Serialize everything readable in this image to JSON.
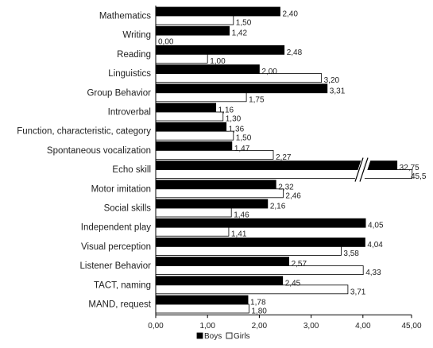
{
  "chart_data": {
    "type": "bar",
    "orientation": "horizontal",
    "categories": [
      "Mathematics",
      "Writing",
      "Reading",
      "Linguistics",
      "Group Behavior",
      "Introverbal",
      "Function, characteristic, category",
      "Spontaneous vocalization",
      "Echo skill",
      "Motor imitation",
      "Social skills",
      "Independent play",
      "Visual perception",
      "Listener Behavior",
      "TACT, naming",
      "MAND, request"
    ],
    "series": [
      {
        "name": "Boys",
        "color": "#000000",
        "values": [
          2.4,
          1.42,
          2.48,
          2.0,
          3.31,
          1.16,
          1.36,
          1.47,
          32.75,
          2.32,
          2.16,
          4.05,
          4.04,
          2.57,
          2.45,
          1.78
        ],
        "labels": [
          "2,40",
          "1,42",
          "2,48",
          "2,00",
          "3,31",
          "1,16",
          "1,36",
          "1,47",
          "32,75",
          "2,32",
          "2,16",
          "4,05",
          "4,04",
          "2,57",
          "2,45",
          "1,78"
        ]
      },
      {
        "name": "Girls",
        "color": "#ffffff",
        "values": [
          1.5,
          0.0,
          1.0,
          3.2,
          1.75,
          1.3,
          1.5,
          2.27,
          45.5,
          2.46,
          1.46,
          1.41,
          3.58,
          4.33,
          3.71,
          1.8
        ],
        "labels": [
          "1,50",
          "0,00",
          "1,00",
          "3,20",
          "1,75",
          "1,30",
          "1,50",
          "2,27",
          "45,5",
          "2,46",
          "1,46",
          "1,41",
          "3,58",
          "4,33",
          "3,71",
          "1,80"
        ]
      }
    ],
    "x_axis": {
      "ticks": [
        0,
        1,
        2,
        3,
        4,
        45
      ],
      "tick_labels": [
        "0,00",
        "1,00",
        "2,00",
        "3,00",
        "4,00",
        "45,00"
      ],
      "scale_break": "between 4,00 and 45,00"
    },
    "legend": {
      "position": "bottom",
      "entries": [
        "Boys",
        "Girls"
      ]
    },
    "grid": false,
    "title": "",
    "xlabel": "",
    "ylabel": ""
  }
}
